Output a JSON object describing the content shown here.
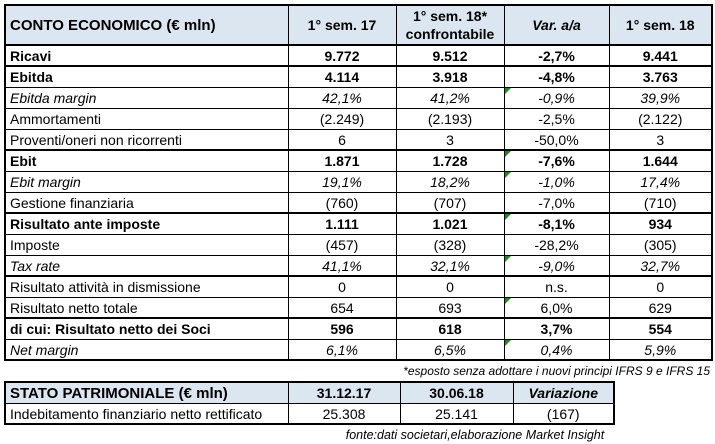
{
  "colors": {
    "header_fill": "#dce6f1",
    "border": "#000000",
    "flag_green": "#1e8a1e",
    "text": "#000000"
  },
  "note": "*esposto senza adottare i nuovi principi IFRS 9 e IFRS 15",
  "source": "fonte:dati societari,elaborazione Market Insight",
  "chart_data": [
    {
      "type": "table",
      "title": "CONTO ECONOMICO (€ mln)",
      "columns": [
        "1° sem. 17",
        "1° sem. 18*\nconfrontabile",
        "Var. a/a",
        "1° sem. 18"
      ],
      "rows": [
        {
          "label": "Ricavi",
          "values": [
            "9.772",
            "9.512",
            "-2,7%",
            "9.441"
          ],
          "style": "bold",
          "sep": false,
          "flag": false
        },
        {
          "label": "Ebitda",
          "values": [
            "4.114",
            "3.918",
            "-4,8%",
            "3.763"
          ],
          "style": "bold",
          "sep": true,
          "flag": false
        },
        {
          "label": "Ebitda margin",
          "values": [
            "42,1%",
            "41,2%",
            "-0,9%",
            "39,9%"
          ],
          "style": "italic",
          "sep": false,
          "flag": true
        },
        {
          "label": "Ammortamenti",
          "values": [
            "(2.249)",
            "(2.193)",
            "-2,5%",
            "(2.122)"
          ],
          "style": "normal",
          "sep": false,
          "flag": false
        },
        {
          "label": "Proventi/oneri non ricorrenti",
          "values": [
            "6",
            "3",
            "-50,0%",
            "3"
          ],
          "style": "normal",
          "sep": false,
          "flag": false
        },
        {
          "label": "Ebit",
          "values": [
            "1.871",
            "1.728",
            "-7,6%",
            "1.644"
          ],
          "style": "bold",
          "sep": true,
          "flag": true
        },
        {
          "label": "Ebit margin",
          "values": [
            "19,1%",
            "18,2%",
            "-1,0%",
            "17,4%"
          ],
          "style": "italic",
          "sep": false,
          "flag": true
        },
        {
          "label": "Gestione finanziaria",
          "values": [
            "(760)",
            "(707)",
            "-7,0%",
            "(710)"
          ],
          "style": "normal",
          "sep": false,
          "flag": false
        },
        {
          "label": "Risultato ante imposte",
          "values": [
            "1.111",
            "1.021",
            "-8,1%",
            "934"
          ],
          "style": "bold",
          "sep": true,
          "flag": true
        },
        {
          "label": "Imposte",
          "values": [
            "(457)",
            "(328)",
            "-28,2%",
            "(305)"
          ],
          "style": "normal",
          "sep": false,
          "flag": false
        },
        {
          "label": "Tax rate",
          "values": [
            "41,1%",
            "32,1%",
            "-9,0%",
            "32,7%"
          ],
          "style": "italic",
          "sep": false,
          "flag": true
        },
        {
          "label": "Risultato attività in dismissione",
          "values": [
            "0",
            "0",
            "n.s.",
            "0"
          ],
          "style": "normal",
          "sep": true,
          "flag": false
        },
        {
          "label": "Risultato netto totale",
          "values": [
            "654",
            "693",
            "6,0%",
            "629"
          ],
          "style": "normal",
          "sep": false,
          "flag": true
        },
        {
          "label": "di cui: Risultato netto dei Soci",
          "values": [
            "596",
            "618",
            "3,7%",
            "554"
          ],
          "style": "bold",
          "sep": true,
          "flag": false
        },
        {
          "label": "Net margin",
          "values": [
            "6,1%",
            "6,5%",
            "0,4%",
            "5,9%"
          ],
          "style": "italic",
          "sep": false,
          "flag": true
        }
      ]
    },
    {
      "type": "table",
      "title": "STATO PATRIMONIALE (€ mln)",
      "columns": [
        "31.12.17",
        "30.06.18",
        "Variazione"
      ],
      "rows": [
        {
          "label": "Indebitamento finanziario netto rettificato",
          "values": [
            "25.308",
            "25.141",
            "(167)"
          ]
        }
      ]
    }
  ]
}
